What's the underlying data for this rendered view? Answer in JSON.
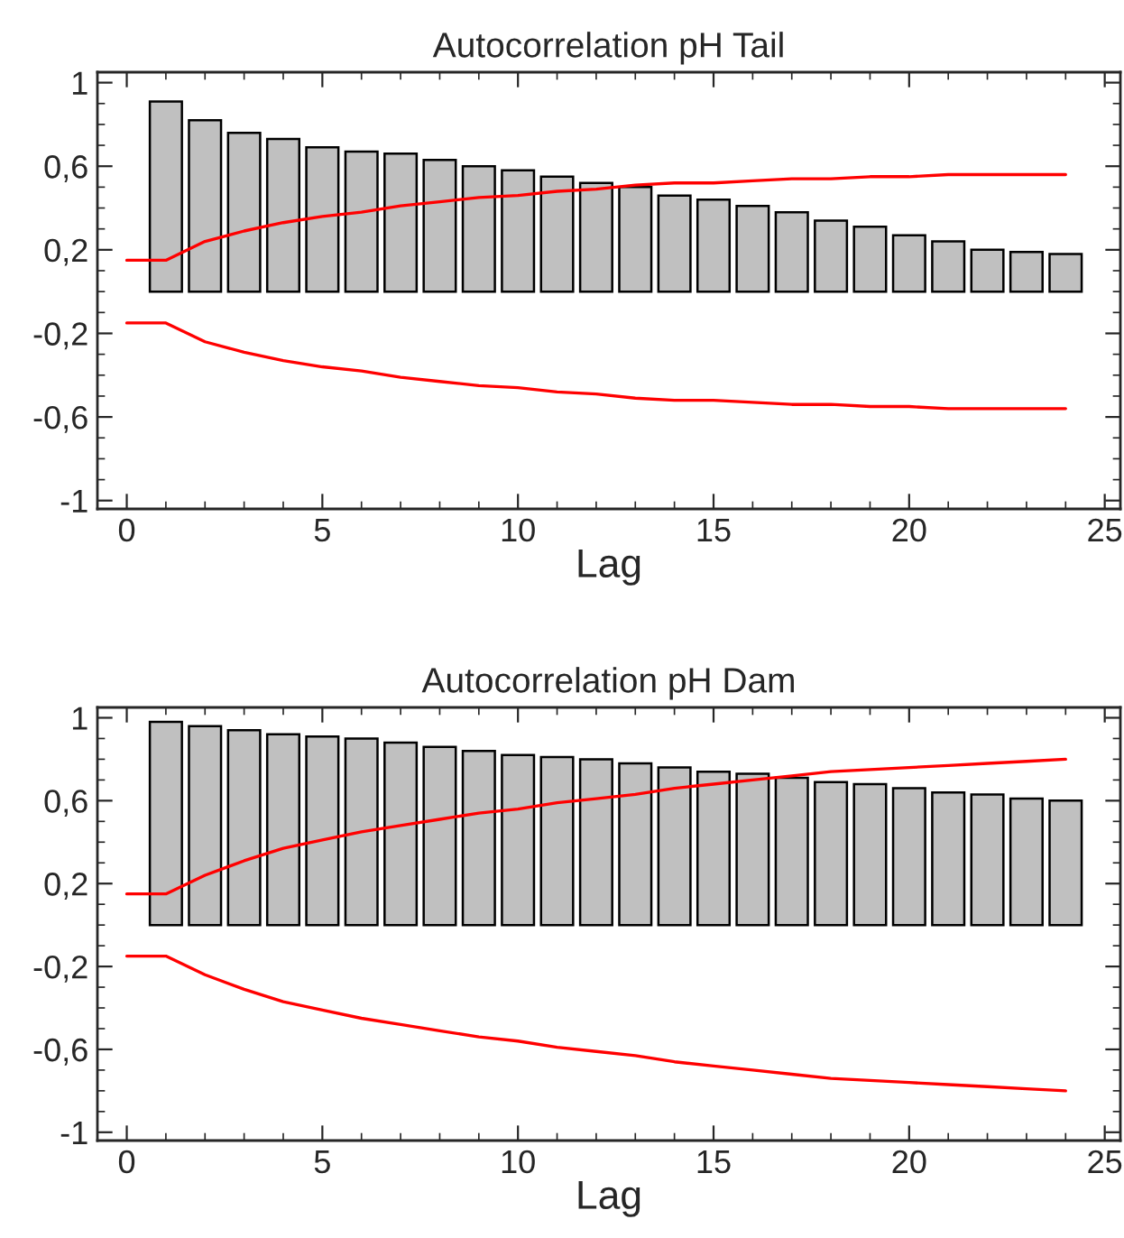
{
  "chart_data": [
    {
      "type": "bar",
      "title": "Autocorrelation pH Tail",
      "xlabel": "Lag",
      "xlim": [
        -0.75,
        25.4
      ],
      "ylim": [
        -1.04,
        1.05
      ],
      "xticks": [
        0,
        5,
        10,
        15,
        20,
        25
      ],
      "yticks": [
        {
          "value": -1,
          "label": "-1"
        },
        {
          "value": -0.6,
          "label": "-0,6"
        },
        {
          "value": -0.2,
          "label": "-0,2"
        },
        {
          "value": 0.2,
          "label": "0,2"
        },
        {
          "value": 0.6,
          "label": "0,6"
        },
        {
          "value": 1,
          "label": "1"
        }
      ],
      "grid": false,
      "legend": false,
      "series": [
        {
          "color": "#c0c0c0",
          "x": [
            1,
            2,
            3,
            4,
            5,
            6,
            7,
            8,
            9,
            10,
            11,
            12,
            13,
            14,
            15,
            16,
            17,
            18,
            19,
            20,
            21,
            22,
            23,
            24
          ],
          "values": [
            0.91,
            0.82,
            0.76,
            0.73,
            0.69,
            0.67,
            0.66,
            0.63,
            0.6,
            0.58,
            0.55,
            0.52,
            0.5,
            0.46,
            0.44,
            0.41,
            0.38,
            0.34,
            0.31,
            0.27,
            0.24,
            0.2,
            0.19,
            0.18
          ]
        },
        {
          "type": "line",
          "color": "#ff0000",
          "x": [
            0,
            1,
            2,
            3,
            4,
            5,
            6,
            7,
            8,
            9,
            10,
            11,
            12,
            13,
            14,
            15,
            16,
            17,
            18,
            19,
            20,
            21,
            22,
            23,
            24
          ],
          "values": [
            0.15,
            0.15,
            0.24,
            0.29,
            0.33,
            0.36,
            0.38,
            0.41,
            0.43,
            0.45,
            0.46,
            0.48,
            0.49,
            0.51,
            0.52,
            0.52,
            0.53,
            0.54,
            0.54,
            0.55,
            0.55,
            0.56,
            0.56,
            0.56,
            0.56
          ]
        },
        {
          "type": "line",
          "color": "#ff0000",
          "x": [
            0,
            1,
            2,
            3,
            4,
            5,
            6,
            7,
            8,
            9,
            10,
            11,
            12,
            13,
            14,
            15,
            16,
            17,
            18,
            19,
            20,
            21,
            22,
            23,
            24
          ],
          "values": [
            -0.15,
            -0.15,
            -0.24,
            -0.29,
            -0.33,
            -0.36,
            -0.38,
            -0.41,
            -0.43,
            -0.45,
            -0.46,
            -0.48,
            -0.49,
            -0.51,
            -0.52,
            -0.52,
            -0.53,
            -0.54,
            -0.54,
            -0.55,
            -0.55,
            -0.56,
            -0.56,
            -0.56,
            -0.56
          ]
        }
      ]
    },
    {
      "type": "bar",
      "title": "Autocorrelation pH Dam",
      "xlabel": "Lag",
      "xlim": [
        -0.75,
        25.4
      ],
      "ylim": [
        -1.04,
        1.05
      ],
      "xticks": [
        0,
        5,
        10,
        15,
        20,
        25
      ],
      "yticks": [
        {
          "value": -1,
          "label": "-1"
        },
        {
          "value": -0.6,
          "label": "-0,6"
        },
        {
          "value": -0.2,
          "label": "-0,2"
        },
        {
          "value": 0.2,
          "label": "0,2"
        },
        {
          "value": 0.6,
          "label": "0,6"
        },
        {
          "value": 1,
          "label": "1"
        }
      ],
      "grid": false,
      "legend": false,
      "series": [
        {
          "color": "#c0c0c0",
          "x": [
            1,
            2,
            3,
            4,
            5,
            6,
            7,
            8,
            9,
            10,
            11,
            12,
            13,
            14,
            15,
            16,
            17,
            18,
            19,
            20,
            21,
            22,
            23,
            24
          ],
          "values": [
            0.98,
            0.96,
            0.94,
            0.92,
            0.91,
            0.9,
            0.88,
            0.86,
            0.84,
            0.82,
            0.81,
            0.8,
            0.78,
            0.76,
            0.74,
            0.73,
            0.71,
            0.69,
            0.68,
            0.66,
            0.64,
            0.63,
            0.61,
            0.6
          ]
        },
        {
          "type": "line",
          "color": "#ff0000",
          "x": [
            0,
            1,
            2,
            3,
            4,
            5,
            6,
            7,
            8,
            9,
            10,
            11,
            12,
            13,
            14,
            15,
            16,
            17,
            18,
            19,
            20,
            21,
            22,
            23,
            24
          ],
          "values": [
            0.15,
            0.15,
            0.24,
            0.31,
            0.37,
            0.41,
            0.45,
            0.48,
            0.51,
            0.54,
            0.56,
            0.59,
            0.61,
            0.63,
            0.66,
            0.68,
            0.7,
            0.72,
            0.74,
            0.75,
            0.76,
            0.77,
            0.78,
            0.79,
            0.8
          ]
        },
        {
          "type": "line",
          "color": "#ff0000",
          "x": [
            0,
            1,
            2,
            3,
            4,
            5,
            6,
            7,
            8,
            9,
            10,
            11,
            12,
            13,
            14,
            15,
            16,
            17,
            18,
            19,
            20,
            21,
            22,
            23,
            24
          ],
          "values": [
            -0.15,
            -0.15,
            -0.24,
            -0.31,
            -0.37,
            -0.41,
            -0.45,
            -0.48,
            -0.51,
            -0.54,
            -0.56,
            -0.59,
            -0.61,
            -0.63,
            -0.66,
            -0.68,
            -0.7,
            -0.72,
            -0.74,
            -0.75,
            -0.76,
            -0.77,
            -0.78,
            -0.79,
            -0.8
          ]
        }
      ]
    }
  ]
}
